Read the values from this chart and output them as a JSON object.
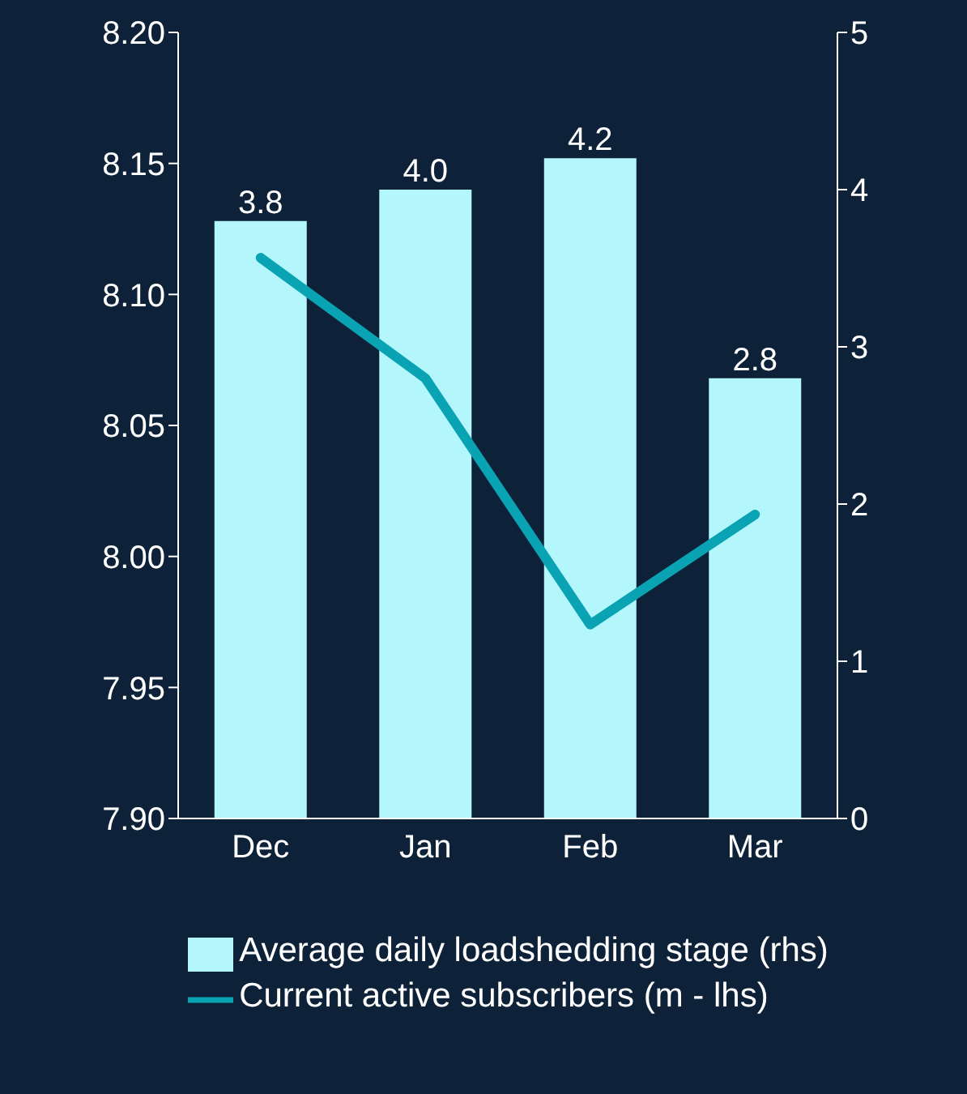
{
  "chart_data": {
    "type": "bar",
    "categories": [
      "Dec",
      "Jan",
      "Feb",
      "Mar"
    ],
    "series": [
      {
        "name": "Average daily loadshedding stage (rhs)",
        "axis": "y2",
        "color": "#b3f6fc",
        "values": [
          3.8,
          4.0,
          4.2,
          2.8
        ],
        "value_labels": [
          "3.8",
          "4.0",
          "4.2",
          "2.8"
        ]
      },
      {
        "name": "Current active subscribers (m - lhs)",
        "type": "line",
        "color": "#0aa3b4",
        "values": [
          8.114,
          8.068,
          7.974,
          8.016
        ]
      }
    ],
    "ylim": [
      7.9,
      8.2
    ],
    "yticks": [
      {
        "value": 7.9,
        "label": "7.90"
      },
      {
        "value": 7.95,
        "label": "7.95"
      },
      {
        "value": 8.0,
        "label": "8.00"
      },
      {
        "value": 8.05,
        "label": "8.05"
      },
      {
        "value": 8.1,
        "label": "8.10"
      },
      {
        "value": 8.15,
        "label": "8.15"
      },
      {
        "value": 8.2,
        "label": "8.20"
      }
    ],
    "y2lim": [
      0,
      5
    ],
    "y2ticks": [
      0,
      1,
      2,
      3,
      4,
      5
    ],
    "grid": false,
    "legend": "bottom",
    "marker": "none"
  }
}
